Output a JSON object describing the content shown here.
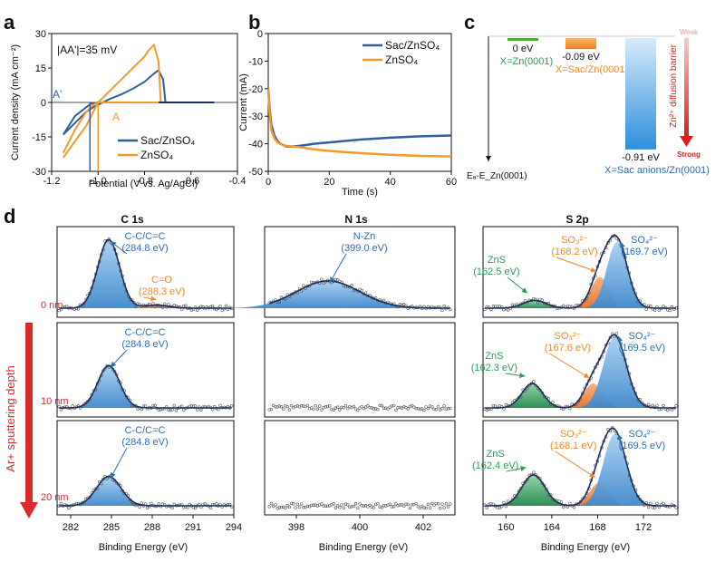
{
  "colors": {
    "blue": "#2f5f9e",
    "orange": "#f39a2a",
    "fill_blue": "#5aa0dc",
    "fill_orange": "#f08a3c",
    "fill_green": "#2e9a5a",
    "green_text": "#2e9a5a",
    "red": "#d92b2b",
    "navy": "#1f2f5a",
    "label_blue": "#2f6fb3",
    "label_orange": "#ee8a2a"
  },
  "panel_letters": {
    "a": "a",
    "b": "b",
    "c": "c",
    "d": "d"
  },
  "chart_data": [
    {
      "id": "a",
      "type": "line",
      "xlabel": "Potential (V vs. Ag/AgCl)",
      "ylabel": "Current density (mA cm⁻²)",
      "xlim": [
        -1.2,
        -0.4
      ],
      "ylim": [
        -30,
        30
      ],
      "xticks": [
        "-1.2",
        "-1.0",
        "-0.8",
        "-0.6",
        "-0.4"
      ],
      "yticks": [
        "-30",
        "-15",
        "0",
        "15",
        "30"
      ],
      "annotation": "|AA'|=35 mV",
      "point_labels": {
        "A": "A",
        "A_prime": "A'"
      },
      "markers": {
        "A_prime_x": -1.035,
        "A_x": -1.0
      },
      "series": [
        {
          "name": "Sac/ZnSO₄",
          "color": "blue",
          "x": [
            -1.15,
            -1.1,
            -1.05,
            -1.02,
            -1.0,
            -0.98,
            -0.95,
            -0.9,
            -0.85,
            -0.8,
            -0.76,
            -0.74,
            -0.72,
            -0.71,
            -0.72,
            -0.75,
            -0.8,
            -0.9,
            -0.95,
            -1.0,
            -1.03,
            -1.05,
            -1.1,
            -1.15
          ],
          "y": [
            -14,
            -9,
            -4,
            -2,
            -1,
            0,
            1.5,
            3.5,
            6,
            9,
            12.5,
            14,
            10,
            0,
            0,
            0,
            0,
            0,
            0,
            0,
            -0.5,
            -2,
            -6,
            -14
          ]
        },
        {
          "name": "ZnSO₄",
          "color": "orange",
          "x": [
            -1.15,
            -1.1,
            -1.05,
            -1.02,
            -1.0,
            -0.98,
            -0.95,
            -0.9,
            -0.85,
            -0.8,
            -0.78,
            -0.76,
            -0.74,
            -0.73,
            -0.75,
            -0.8,
            -0.9,
            -1.0,
            -1.02,
            -1.05,
            -1.1,
            -1.15
          ],
          "y": [
            -24,
            -17,
            -10,
            -4,
            0,
            2,
            5,
            10,
            15,
            20,
            23,
            25,
            18,
            0,
            0,
            0,
            0,
            0,
            -1,
            -4,
            -12,
            -22
          ]
        },
        {
          "name": "",
          "color": "navy",
          "x": [
            -0.74,
            -0.7,
            -0.6,
            -0.5
          ],
          "y": [
            0,
            0,
            0,
            0
          ]
        }
      ]
    },
    {
      "id": "b",
      "type": "line",
      "xlabel": "Time (s)",
      "ylabel": "Current (mA)",
      "xlim": [
        0,
        60
      ],
      "ylim": [
        -50,
        0
      ],
      "xticks": [
        "0",
        "20",
        "40",
        "60"
      ],
      "yticks": [
        "0",
        "-10",
        "-20",
        "-30",
        "-40",
        "-50"
      ],
      "series": [
        {
          "name": "Sac/ZnSO₄",
          "color": "blue",
          "x": [
            0,
            0.5,
            1,
            2,
            3,
            4,
            5,
            6,
            8,
            10,
            12,
            15,
            20,
            30,
            40,
            50,
            60
          ],
          "y": [
            -20,
            -28,
            -33,
            -37,
            -39,
            -40,
            -40.5,
            -41,
            -41,
            -40.8,
            -40.5,
            -40,
            -39.5,
            -38.5,
            -37.8,
            -37.3,
            -37
          ]
        },
        {
          "name": "ZnSO₄",
          "color": "orange",
          "x": [
            0,
            0.5,
            1,
            2,
            3,
            4,
            5,
            6,
            8,
            10,
            12,
            15,
            20,
            30,
            40,
            50,
            60
          ],
          "y": [
            -20,
            -30,
            -35,
            -38,
            -39.5,
            -40,
            -40.5,
            -40.8,
            -41,
            -41.2,
            -41.5,
            -42,
            -42.6,
            -43.4,
            -44,
            -44.4,
            -44.6
          ]
        }
      ]
    },
    {
      "id": "c",
      "type": "bar",
      "ylabel": "Eₐ-E_Zn(0001)",
      "categories": [
        "X=Zn(0001)",
        "X=Sac/Zn(0001)",
        "X=Sac anions/Zn(0001)"
      ],
      "values": [
        0,
        -0.09,
        -0.91
      ],
      "value_labels": [
        "0 eV",
        "-0.09 eV",
        "-0.91 eV"
      ],
      "arrow_top": "Weak",
      "arrow_bottom": "Strong",
      "arrow_label": "Zn²⁺ diffusion barrier"
    },
    {
      "id": "d",
      "type": "xps",
      "side_label": "Ar+ sputtering depth",
      "depth_labels": [
        "0 nm",
        "10 nm",
        "20 nm"
      ],
      "columns": [
        {
          "title": "C 1s",
          "xlabel": "Binding Energy (eV)",
          "xlim": [
            281,
            294
          ],
          "xticks": [
            282,
            285,
            288,
            291,
            294
          ],
          "rows": [
            {
              "peaks": [
                {
                  "center": 284.8,
                  "height": 0.88,
                  "width": 0.8,
                  "color": "fill_blue"
                },
                {
                  "center": 288.3,
                  "height": 0.04,
                  "width": 0.9,
                  "color": "fill_orange"
                }
              ],
              "labels": [
                {
                  "text": "C-C/C=C\n(284.8 eV)",
                  "color": "label_blue"
                },
                {
                  "text": "C=O\n(288.3 eV)",
                  "color": "label_orange"
                }
              ]
            },
            {
              "peaks": [
                {
                  "center": 284.8,
                  "height": 0.52,
                  "width": 0.8,
                  "color": "fill_blue"
                }
              ],
              "labels": [
                {
                  "text": "C-C/C=C\n(284.8 eV)",
                  "color": "label_blue"
                }
              ]
            },
            {
              "peaks": [
                {
                  "center": 284.8,
                  "height": 0.36,
                  "width": 0.9,
                  "color": "fill_blue"
                }
              ],
              "labels": [
                {
                  "text": "C-C/C=C\n(284.8 eV)",
                  "color": "label_blue"
                }
              ]
            }
          ]
        },
        {
          "title": "N 1s",
          "xlabel": "Binding Energy (eV)",
          "xlim": [
            397,
            403
          ],
          "xticks": [
            398,
            400,
            402
          ],
          "rows": [
            {
              "peaks": [
                {
                  "center": 399.0,
                  "height": 0.35,
                  "width": 1.0,
                  "color": "fill_blue"
                }
              ],
              "labels": [
                {
                  "text": "N-Zn\n(399.0 eV)",
                  "color": "label_blue"
                }
              ]
            },
            {
              "peaks": [],
              "labels": []
            },
            {
              "peaks": [],
              "labels": []
            }
          ]
        },
        {
          "title": "S 2p",
          "xlabel": "Binding Energy (eV)",
          "xlim": [
            158,
            175
          ],
          "xticks": [
            160,
            164,
            168,
            172
          ],
          "rows": [
            {
              "peaks": [
                {
                  "center": 162.5,
                  "height": 0.1,
                  "width": 1.0,
                  "color": "fill_green"
                },
                {
                  "center": 168.2,
                  "height": 0.4,
                  "width": 0.8,
                  "color": "fill_orange"
                },
                {
                  "center": 169.7,
                  "height": 0.85,
                  "width": 0.9,
                  "color": "fill_blue"
                }
              ],
              "labels": [
                {
                  "text": "ZnS\n(162.5 eV)",
                  "color": "green_text"
                },
                {
                  "text": "SO₃²⁻\n(168.2 eV)",
                  "color": "label_orange"
                },
                {
                  "text": "SO₄²⁻\n(169.7 eV)",
                  "color": "label_blue"
                }
              ]
            },
            {
              "peaks": [
                {
                  "center": 162.3,
                  "height": 0.3,
                  "width": 0.9,
                  "color": "fill_green"
                },
                {
                  "center": 167.6,
                  "height": 0.3,
                  "width": 0.8,
                  "color": "fill_orange"
                },
                {
                  "center": 169.5,
                  "height": 0.88,
                  "width": 1.0,
                  "color": "fill_blue"
                }
              ],
              "labels": [
                {
                  "text": "ZnS\n(162.3 eV)",
                  "color": "green_text"
                },
                {
                  "text": "SO₃²⁻\n(167.6 eV)",
                  "color": "label_orange"
                },
                {
                  "text": "SO₄²⁻\n(169.5 eV)",
                  "color": "label_blue"
                }
              ]
            },
            {
              "peaks": [
                {
                  "center": 162.4,
                  "height": 0.38,
                  "width": 1.0,
                  "color": "fill_green"
                },
                {
                  "center": 168.1,
                  "height": 0.28,
                  "width": 0.8,
                  "color": "fill_orange"
                },
                {
                  "center": 169.5,
                  "height": 0.88,
                  "width": 1.0,
                  "color": "fill_blue"
                }
              ],
              "labels": [
                {
                  "text": "ZnS\n(162.4 eV)",
                  "color": "green_text"
                },
                {
                  "text": "SO₃²⁻\n(168.1 eV)",
                  "color": "label_orange"
                },
                {
                  "text": "SO₄²⁻\n(169.5 eV)",
                  "color": "label_blue"
                }
              ]
            }
          ]
        }
      ]
    }
  ]
}
